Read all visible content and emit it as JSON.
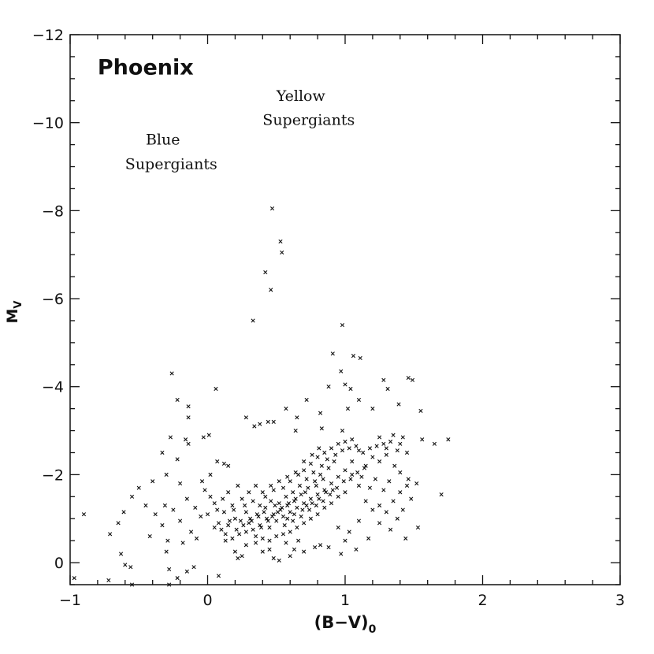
{
  "chart_data": {
    "type": "scatter",
    "title": "",
    "xlabel": "(B−V)",
    "xlabel_subscript": "0",
    "ylabel": "M",
    "ylabel_subscript": "V",
    "xlim": [
      -1,
      3
    ],
    "ylim": [
      0.5,
      -12
    ],
    "y_inverted": true,
    "xticks": [
      -1,
      0,
      1,
      2,
      3
    ],
    "xtick_labels": [
      "−1",
      "0",
      "1",
      "2",
      "3"
    ],
    "yticks": [
      0,
      -2,
      -4,
      -6,
      -8,
      -10,
      -12
    ],
    "ytick_labels": [
      "0",
      "−2",
      "−4",
      "−6",
      "−8",
      "−10",
      "−12"
    ],
    "grid": false,
    "marker": "x",
    "annotations": [
      {
        "text": "Phoenix",
        "x": -0.8,
        "y": -11.1,
        "style": "big"
      },
      {
        "text": "Yellow",
        "x": 0.5,
        "y": -10.5,
        "style": "normal"
      },
      {
        "text": "Supergiants",
        "x": 0.4,
        "y": -9.95,
        "style": "normal"
      },
      {
        "text": "Blue",
        "x": -0.45,
        "y": -9.5,
        "style": "normal"
      },
      {
        "text": "Supergiants",
        "x": -0.6,
        "y": -8.95,
        "style": "normal"
      }
    ],
    "series": [
      {
        "points": [
          [
            0.47,
            -8.05
          ],
          [
            0.53,
            -7.3
          ],
          [
            0.54,
            -7.05
          ],
          [
            0.42,
            -6.6
          ],
          [
            0.46,
            -6.2
          ],
          [
            0.33,
            -5.5
          ],
          [
            0.98,
            -5.4
          ],
          [
            0.91,
            -4.75
          ],
          [
            1.06,
            -4.7
          ],
          [
            1.11,
            -4.65
          ],
          [
            0.97,
            -4.35
          ],
          [
            1.0,
            -4.05
          ],
          [
            0.88,
            -4.0
          ],
          [
            1.04,
            -3.95
          ],
          [
            -0.26,
            -4.3
          ],
          [
            0.06,
            -3.95
          ],
          [
            1.28,
            -4.15
          ],
          [
            1.46,
            -4.2
          ],
          [
            1.49,
            -4.15
          ],
          [
            1.31,
            -3.95
          ],
          [
            -0.22,
            -3.7
          ],
          [
            -0.14,
            -3.55
          ],
          [
            -0.14,
            -3.3
          ],
          [
            0.57,
            -3.5
          ],
          [
            0.72,
            -3.7
          ],
          [
            0.82,
            -3.4
          ],
          [
            1.02,
            -3.5
          ],
          [
            1.1,
            -3.7
          ],
          [
            1.2,
            -3.5
          ],
          [
            1.39,
            -3.6
          ],
          [
            1.55,
            -3.45
          ],
          [
            0.28,
            -3.3
          ],
          [
            0.38,
            -3.15
          ],
          [
            0.34,
            -3.1
          ],
          [
            0.44,
            -3.2
          ],
          [
            0.48,
            -3.2
          ],
          [
            0.65,
            -3.3
          ],
          [
            0.83,
            -3.05
          ],
          [
            0.98,
            -3.0
          ],
          [
            0.64,
            -3.0
          ],
          [
            1.56,
            -2.8
          ],
          [
            1.65,
            -2.7
          ],
          [
            1.75,
            -2.8
          ],
          [
            1.7,
            -1.55
          ],
          [
            1.52,
            -1.8
          ],
          [
            1.53,
            -0.8
          ],
          [
            -0.27,
            -2.85
          ],
          [
            -0.16,
            -2.8
          ],
          [
            -0.14,
            -2.7
          ],
          [
            -0.03,
            -2.85
          ],
          [
            0.01,
            -2.9
          ],
          [
            -0.33,
            -2.5
          ],
          [
            -0.22,
            -2.35
          ],
          [
            0.07,
            -2.3
          ],
          [
            0.12,
            -2.25
          ],
          [
            0.15,
            -2.2
          ],
          [
            0.02,
            -2.0
          ],
          [
            -0.04,
            -1.85
          ],
          [
            -0.3,
            -2.0
          ],
          [
            -0.2,
            -1.8
          ],
          [
            -0.4,
            -1.85
          ],
          [
            -0.5,
            -1.7
          ],
          [
            -0.55,
            -1.5
          ],
          [
            -0.45,
            -1.3
          ],
          [
            -0.38,
            -1.1
          ],
          [
            -0.31,
            -1.3
          ],
          [
            -0.25,
            -1.2
          ],
          [
            -0.2,
            -0.95
          ],
          [
            -0.15,
            -1.45
          ],
          [
            -0.09,
            -1.25
          ],
          [
            -0.05,
            -1.05
          ],
          [
            -0.12,
            -0.7
          ],
          [
            -0.33,
            -0.85
          ],
          [
            -0.42,
            -0.6
          ],
          [
            -0.29,
            -0.5
          ],
          [
            -0.18,
            -0.45
          ],
          [
            -0.08,
            -0.55
          ],
          [
            -0.61,
            -1.15
          ],
          [
            -0.65,
            -0.9
          ],
          [
            -0.71,
            -0.65
          ],
          [
            -0.9,
            -1.1
          ],
          [
            -0.63,
            -0.2
          ],
          [
            -0.6,
            0.05
          ],
          [
            -0.56,
            0.1
          ],
          [
            -0.3,
            -0.25
          ],
          [
            -0.28,
            0.15
          ],
          [
            -0.22,
            0.35
          ],
          [
            -0.15,
            0.2
          ],
          [
            -0.1,
            0.1
          ],
          [
            0.08,
            0.3
          ],
          [
            -0.97,
            0.35
          ],
          [
            -0.72,
            0.4
          ],
          [
            -0.55,
            0.5
          ],
          [
            -0.28,
            0.5
          ],
          [
            1.25,
            -2.85
          ],
          [
            1.3,
            -2.6
          ],
          [
            1.35,
            -2.9
          ],
          [
            1.4,
            -2.7
          ],
          [
            1.45,
            -2.5
          ],
          [
            1.42,
            -2.85
          ],
          [
            1.2,
            -2.4
          ],
          [
            1.15,
            -2.2
          ],
          [
            1.1,
            -2.55
          ],
          [
            1.05,
            -2.3
          ],
          [
            1.25,
            -2.3
          ],
          [
            1.3,
            -2.45
          ],
          [
            1.36,
            -2.2
          ],
          [
            1.4,
            -2.05
          ],
          [
            1.46,
            -1.9
          ],
          [
            1.32,
            -1.85
          ],
          [
            1.28,
            -1.65
          ],
          [
            1.22,
            -1.9
          ],
          [
            1.18,
            -1.7
          ],
          [
            1.12,
            -1.95
          ],
          [
            1.4,
            -1.6
          ],
          [
            1.45,
            -1.75
          ],
          [
            1.48,
            -1.45
          ],
          [
            1.35,
            -1.4
          ],
          [
            1.25,
            -1.3
          ],
          [
            1.3,
            -1.15
          ],
          [
            1.38,
            -1.0
          ],
          [
            1.42,
            -1.2
          ],
          [
            1.2,
            -1.2
          ],
          [
            1.15,
            -1.4
          ],
          [
            1.33,
            -0.75
          ],
          [
            1.44,
            -0.55
          ],
          [
            1.25,
            -0.9
          ],
          [
            1.1,
            -0.95
          ],
          [
            1.03,
            -0.7
          ],
          [
            0.95,
            -0.8
          ],
          [
            1.0,
            -0.5
          ],
          [
            0.88,
            -0.35
          ],
          [
            0.97,
            -0.2
          ],
          [
            1.08,
            -0.3
          ],
          [
            1.17,
            -0.55
          ],
          [
            0.48,
            -0.1
          ],
          [
            0.52,
            -0.05
          ],
          [
            0.28,
            -0.4
          ],
          [
            0.35,
            -0.6
          ],
          [
            0.13,
            -0.5
          ],
          [
            0.2,
            -0.25
          ],
          [
            0.25,
            -0.15
          ],
          [
            0.22,
            -0.1
          ],
          [
            0.6,
            -0.15
          ],
          [
            0.7,
            -0.25
          ],
          [
            0.78,
            -0.35
          ],
          [
            0.82,
            -0.4
          ],
          [
            0.63,
            -0.3
          ],
          [
            0.57,
            -0.45
          ],
          [
            0.66,
            -0.5
          ],
          [
            0.4,
            -0.25
          ],
          [
            0.45,
            -0.3
          ],
          [
            0.15,
            -1.6
          ],
          [
            0.22,
            -1.75
          ],
          [
            0.3,
            -1.6
          ],
          [
            0.35,
            -1.75
          ],
          [
            0.25,
            -1.45
          ],
          [
            0.18,
            -1.3
          ],
          [
            0.12,
            -1.15
          ],
          [
            0.05,
            -1.35
          ],
          [
            0.0,
            -1.1
          ],
          [
            0.08,
            -0.9
          ],
          [
            0.15,
            -0.85
          ],
          [
            0.2,
            -1.0
          ],
          [
            0.28,
            -1.15
          ],
          [
            0.32,
            -0.95
          ],
          [
            0.38,
            -1.3
          ],
          [
            0.42,
            -1.5
          ],
          [
            0.48,
            -1.65
          ],
          [
            0.55,
            -1.7
          ],
          [
            0.6,
            -1.85
          ],
          [
            0.66,
            -2.0
          ],
          [
            0.7,
            -2.1
          ],
          [
            0.75,
            -2.25
          ],
          [
            0.8,
            -2.4
          ],
          [
            0.85,
            -2.5
          ],
          [
            0.9,
            -2.6
          ],
          [
            0.95,
            -2.7
          ],
          [
            1.0,
            -2.75
          ],
          [
            1.05,
            -2.8
          ],
          [
            0.92,
            -2.3
          ],
          [
            0.88,
            -2.15
          ],
          [
            0.82,
            -2.0
          ],
          [
            0.78,
            -1.85
          ],
          [
            0.73,
            -1.7
          ],
          [
            0.68,
            -1.55
          ],
          [
            0.63,
            -1.4
          ],
          [
            0.58,
            -1.3
          ],
          [
            0.53,
            -1.2
          ],
          [
            0.48,
            -1.1
          ],
          [
            0.43,
            -1.0
          ],
          [
            0.38,
            -0.85
          ],
          [
            0.33,
            -0.75
          ],
          [
            0.28,
            -0.7
          ],
          [
            0.23,
            -0.65
          ],
          [
            0.18,
            -0.55
          ],
          [
            0.45,
            -0.8
          ],
          [
            0.5,
            -0.95
          ],
          [
            0.55,
            -1.05
          ],
          [
            0.6,
            -1.15
          ],
          [
            0.65,
            -1.25
          ],
          [
            0.7,
            -1.35
          ],
          [
            0.75,
            -1.45
          ],
          [
            0.8,
            -1.55
          ],
          [
            0.85,
            -1.65
          ],
          [
            0.9,
            -1.8
          ],
          [
            0.95,
            -1.95
          ],
          [
            1.0,
            -2.1
          ],
          [
            1.05,
            -2.0
          ],
          [
            1.1,
            -1.75
          ],
          [
            1.0,
            -1.6
          ],
          [
            0.95,
            -1.5
          ],
          [
            0.9,
            -1.35
          ],
          [
            0.85,
            -1.25
          ],
          [
            0.8,
            -1.1
          ],
          [
            0.75,
            -1.0
          ],
          [
            0.7,
            -0.9
          ],
          [
            0.65,
            -0.8
          ],
          [
            0.6,
            -0.7
          ],
          [
            0.55,
            -0.65
          ],
          [
            0.5,
            -0.6
          ],
          [
            0.45,
            -0.5
          ],
          [
            0.4,
            -0.55
          ],
          [
            0.35,
            -0.45
          ],
          [
            0.52,
            -1.35
          ],
          [
            0.57,
            -1.5
          ],
          [
            0.62,
            -1.6
          ],
          [
            0.67,
            -1.75
          ],
          [
            0.72,
            -1.9
          ],
          [
            0.77,
            -2.05
          ],
          [
            0.83,
            -2.2
          ],
          [
            0.87,
            -2.35
          ],
          [
            0.93,
            -2.45
          ],
          [
            0.98,
            -2.55
          ],
          [
            1.03,
            -2.6
          ],
          [
            1.08,
            -2.65
          ],
          [
            1.13,
            -2.5
          ],
          [
            1.18,
            -2.6
          ],
          [
            1.23,
            -2.65
          ],
          [
            1.28,
            -2.7
          ],
          [
            1.33,
            -2.75
          ],
          [
            1.38,
            -2.55
          ],
          [
            0.42,
            -1.25
          ],
          [
            0.46,
            -1.4
          ],
          [
            0.36,
            -1.1
          ],
          [
            0.3,
            -0.9
          ],
          [
            0.26,
            -0.85
          ],
          [
            0.21,
            -0.75
          ],
          [
            0.56,
            -0.85
          ],
          [
            0.62,
            -0.95
          ],
          [
            0.68,
            -1.05
          ],
          [
            0.74,
            -1.2
          ],
          [
            0.79,
            -1.3
          ],
          [
            0.84,
            -1.4
          ],
          [
            0.89,
            -1.55
          ],
          [
            0.94,
            -1.7
          ],
          [
            0.99,
            -1.85
          ],
          [
            1.04,
            -1.9
          ],
          [
            1.09,
            -2.05
          ],
          [
            1.14,
            -2.15
          ],
          [
            0.51,
            -1.15
          ],
          [
            0.47,
            -1.05
          ],
          [
            0.44,
            -0.95
          ],
          [
            0.39,
            -0.8
          ],
          [
            0.58,
            -1.0
          ],
          [
            0.63,
            -1.1
          ],
          [
            0.69,
            -1.2
          ],
          [
            0.72,
            -1.3
          ],
          [
            0.76,
            -1.35
          ],
          [
            0.81,
            -1.45
          ],
          [
            0.86,
            -1.6
          ],
          [
            0.91,
            -1.65
          ],
          [
            0.54,
            -1.25
          ],
          [
            0.59,
            -1.35
          ],
          [
            0.64,
            -1.45
          ],
          [
            0.71,
            -1.6
          ],
          [
            0.79,
            -1.75
          ],
          [
            0.84,
            -1.9
          ],
          [
            0.49,
            -1.3
          ],
          [
            0.41,
            -1.15
          ],
          [
            0.37,
            -1.05
          ],
          [
            0.31,
            -1.0
          ],
          [
            0.24,
            -0.95
          ],
          [
            0.16,
            -0.95
          ],
          [
            0.1,
            -0.75
          ],
          [
            0.05,
            -0.8
          ],
          [
            0.13,
            -0.65
          ],
          [
            0.07,
            -1.2
          ],
          [
            0.02,
            -1.5
          ],
          [
            -0.02,
            -1.65
          ],
          [
            0.11,
            -1.45
          ],
          [
            0.19,
            -1.2
          ],
          [
            0.27,
            -1.3
          ],
          [
            0.33,
            -1.4
          ],
          [
            0.4,
            -1.6
          ],
          [
            0.46,
            -1.75
          ],
          [
            0.52,
            -1.85
          ],
          [
            0.58,
            -1.95
          ],
          [
            0.64,
            -2.05
          ],
          [
            0.7,
            -2.3
          ],
          [
            0.76,
            -2.45
          ],
          [
            0.81,
            -2.6
          ]
        ]
      }
    ]
  }
}
